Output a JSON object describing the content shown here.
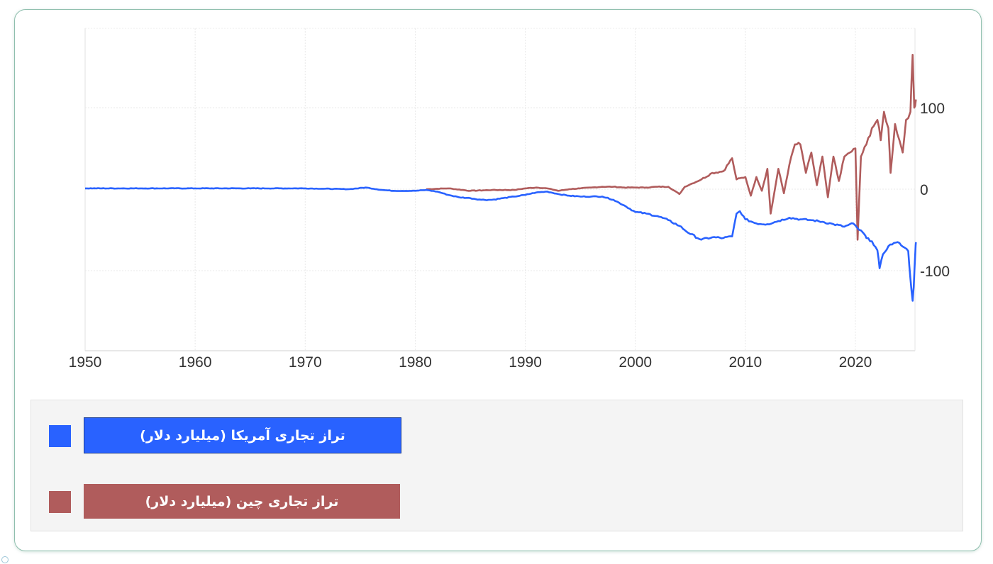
{
  "chart_data": {
    "type": "line",
    "title": "",
    "xlabel": "",
    "ylabel": "",
    "x_ticks": [
      "1950",
      "1960",
      "1970",
      "1980",
      "1990",
      "2000",
      "2010",
      "2020"
    ],
    "y_ticks": [
      "100",
      "0",
      "-100"
    ],
    "xlim": [
      1950,
      2025.5
    ],
    "ylim": [
      -200,
      200
    ],
    "grid": true,
    "y_axis_position": "right",
    "legend_position": "bottom",
    "series": [
      {
        "name": "تراز تجاری آمریکا (میلیارد دلار)",
        "color": "#2962ff",
        "points": [
          [
            1950,
            1
          ],
          [
            1955,
            1
          ],
          [
            1960,
            1
          ],
          [
            1965,
            1
          ],
          [
            1970,
            1
          ],
          [
            1974,
            0
          ],
          [
            1975.5,
            2
          ],
          [
            1977,
            -1
          ],
          [
            1978,
            -2
          ],
          [
            1980,
            -2
          ],
          [
            1981,
            -1
          ],
          [
            1982,
            -3
          ],
          [
            1983,
            -7
          ],
          [
            1984,
            -10
          ],
          [
            1985,
            -11
          ],
          [
            1986,
            -13
          ],
          [
            1987,
            -13
          ],
          [
            1988,
            -11
          ],
          [
            1989,
            -9
          ],
          [
            1990,
            -7
          ],
          [
            1991,
            -4
          ],
          [
            1992,
            -3
          ],
          [
            1993,
            -6
          ],
          [
            1994,
            -8
          ],
          [
            1995,
            -9
          ],
          [
            1996,
            -9
          ],
          [
            1997,
            -9
          ],
          [
            1998,
            -13
          ],
          [
            1999,
            -20
          ],
          [
            2000,
            -28
          ],
          [
            2001,
            -30
          ],
          [
            2002,
            -33
          ],
          [
            2003,
            -38
          ],
          [
            2004,
            -45
          ],
          [
            2005,
            -55
          ],
          [
            2006,
            -62
          ],
          [
            2007,
            -59
          ],
          [
            2008,
            -60
          ],
          [
            2008.8,
            -58
          ],
          [
            2009.2,
            -30
          ],
          [
            2009.5,
            -27
          ],
          [
            2010,
            -37
          ],
          [
            2011,
            -42
          ],
          [
            2012,
            -43
          ],
          [
            2013,
            -39
          ],
          [
            2014,
            -35
          ],
          [
            2015,
            -37
          ],
          [
            2016,
            -38
          ],
          [
            2017,
            -40
          ],
          [
            2018,
            -43
          ],
          [
            2019,
            -46
          ],
          [
            2019.8,
            -42
          ],
          [
            2020.2,
            -48
          ],
          [
            2020.8,
            -55
          ],
          [
            2021,
            -60
          ],
          [
            2021.5,
            -64
          ],
          [
            2022,
            -75
          ],
          [
            2022.2,
            -97
          ],
          [
            2022.5,
            -80
          ],
          [
            2023,
            -70
          ],
          [
            2023.5,
            -66
          ],
          [
            2024,
            -66
          ],
          [
            2024.5,
            -72
          ],
          [
            2024.8,
            -76
          ],
          [
            2025,
            -110
          ],
          [
            2025.2,
            -137
          ],
          [
            2025.3,
            -120
          ],
          [
            2025.45,
            -75
          ],
          [
            2025.5,
            -65
          ]
        ]
      },
      {
        "name": "تراز تجاری چین (میلیارد دلار)",
        "color": "#b05c5c",
        "points": [
          [
            1981,
            0
          ],
          [
            1983,
            1
          ],
          [
            1985,
            -2
          ],
          [
            1987,
            -1
          ],
          [
            1989,
            -1
          ],
          [
            1990,
            1
          ],
          [
            1991,
            2
          ],
          [
            1992,
            1
          ],
          [
            1993,
            -2
          ],
          [
            1994,
            0
          ],
          [
            1995,
            1
          ],
          [
            1996,
            2
          ],
          [
            1997,
            3
          ],
          [
            1998,
            3
          ],
          [
            1999,
            2
          ],
          [
            2000,
            2
          ],
          [
            2001,
            2
          ],
          [
            2002,
            3
          ],
          [
            2003,
            3
          ],
          [
            2004,
            -6
          ],
          [
            2004.5,
            3
          ],
          [
            2005,
            6
          ],
          [
            2006,
            12
          ],
          [
            2007,
            20
          ],
          [
            2008,
            22
          ],
          [
            2008.8,
            38
          ],
          [
            2009.2,
            12
          ],
          [
            2010,
            15
          ],
          [
            2010.5,
            -8
          ],
          [
            2011,
            15
          ],
          [
            2011.5,
            -2
          ],
          [
            2012,
            25
          ],
          [
            2012.3,
            -30
          ],
          [
            2013,
            25
          ],
          [
            2013.5,
            -5
          ],
          [
            2014,
            30
          ],
          [
            2014.5,
            55
          ],
          [
            2015,
            55
          ],
          [
            2015.5,
            20
          ],
          [
            2016,
            45
          ],
          [
            2016.5,
            5
          ],
          [
            2017,
            40
          ],
          [
            2017.5,
            -10
          ],
          [
            2018,
            40
          ],
          [
            2018.5,
            10
          ],
          [
            2019,
            40
          ],
          [
            2019.5,
            45
          ],
          [
            2020,
            50
          ],
          [
            2020.2,
            -62
          ],
          [
            2020.5,
            40
          ],
          [
            2021,
            55
          ],
          [
            2021.5,
            75
          ],
          [
            2022,
            85
          ],
          [
            2022.3,
            60
          ],
          [
            2022.6,
            95
          ],
          [
            2023,
            75
          ],
          [
            2023.2,
            20
          ],
          [
            2023.6,
            80
          ],
          [
            2024,
            60
          ],
          [
            2024.3,
            45
          ],
          [
            2024.6,
            85
          ],
          [
            2025,
            95
          ],
          [
            2025.2,
            165
          ],
          [
            2025.35,
            100
          ],
          [
            2025.5,
            110
          ]
        ]
      }
    ]
  },
  "legend": {
    "items": [
      {
        "label": "تراز تجاری آمریکا (میلیارد دلار)",
        "color": "#2962ff"
      },
      {
        "label": "تراز تجاری چین (میلیارد دلار)",
        "color": "#b05c5c"
      }
    ]
  }
}
